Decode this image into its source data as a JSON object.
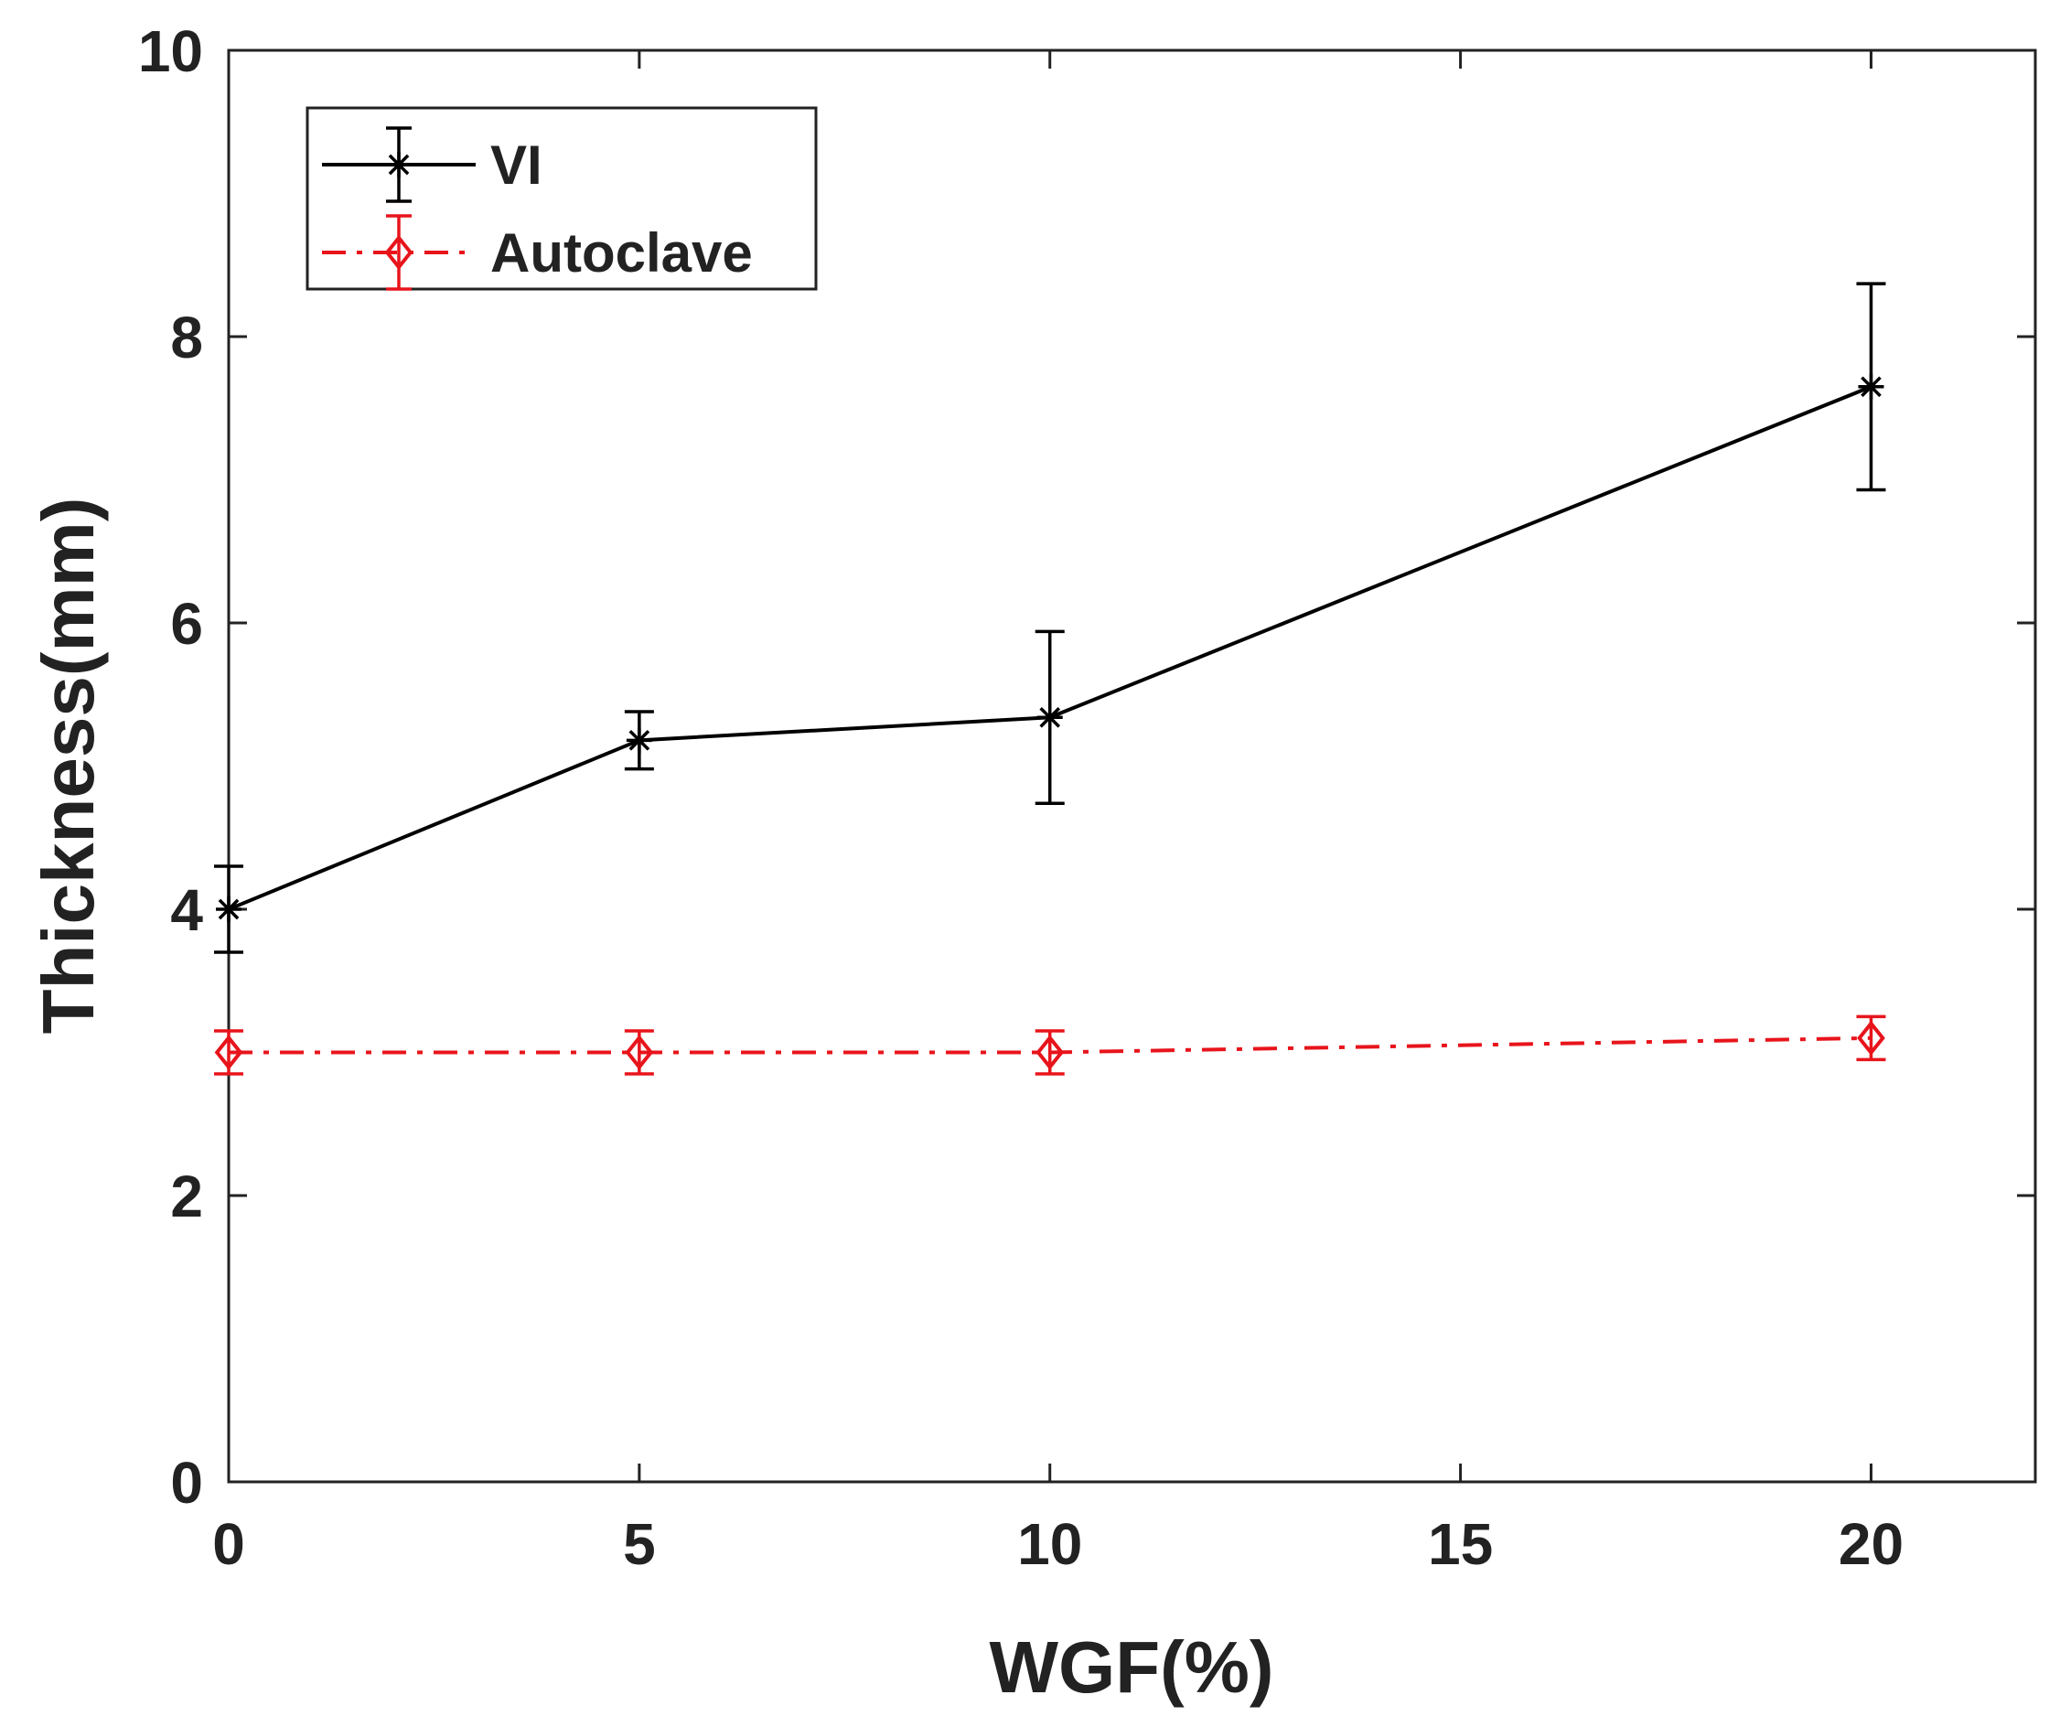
{
  "chart_data": {
    "type": "line",
    "title": "",
    "xlabel": "WGF(%)",
    "ylabel": "Thickness(mm)",
    "xlim": [
      0,
      22
    ],
    "ylim": [
      0,
      10
    ],
    "xticks": [
      0,
      5,
      10,
      15,
      20
    ],
    "yticks": [
      0,
      2,
      4,
      6,
      8,
      10
    ],
    "grid": false,
    "legend_position": "top-left",
    "series": [
      {
        "name": "VI",
        "color": "#000000",
        "line_style": "solid",
        "marker": "asterisk",
        "x": [
          0,
          5,
          10,
          20
        ],
        "y": [
          4.0,
          5.18,
          5.34,
          7.65
        ],
        "err": [
          0.3,
          0.2,
          0.6,
          0.72
        ]
      },
      {
        "name": "Autoclave",
        "color": "#e8141b",
        "line_style": "dash-dot",
        "marker": "diamond",
        "x": [
          0,
          5,
          10,
          20
        ],
        "y": [
          3.0,
          3.0,
          3.0,
          3.1
        ],
        "err": [
          0.15,
          0.15,
          0.15,
          0.15
        ]
      }
    ]
  }
}
